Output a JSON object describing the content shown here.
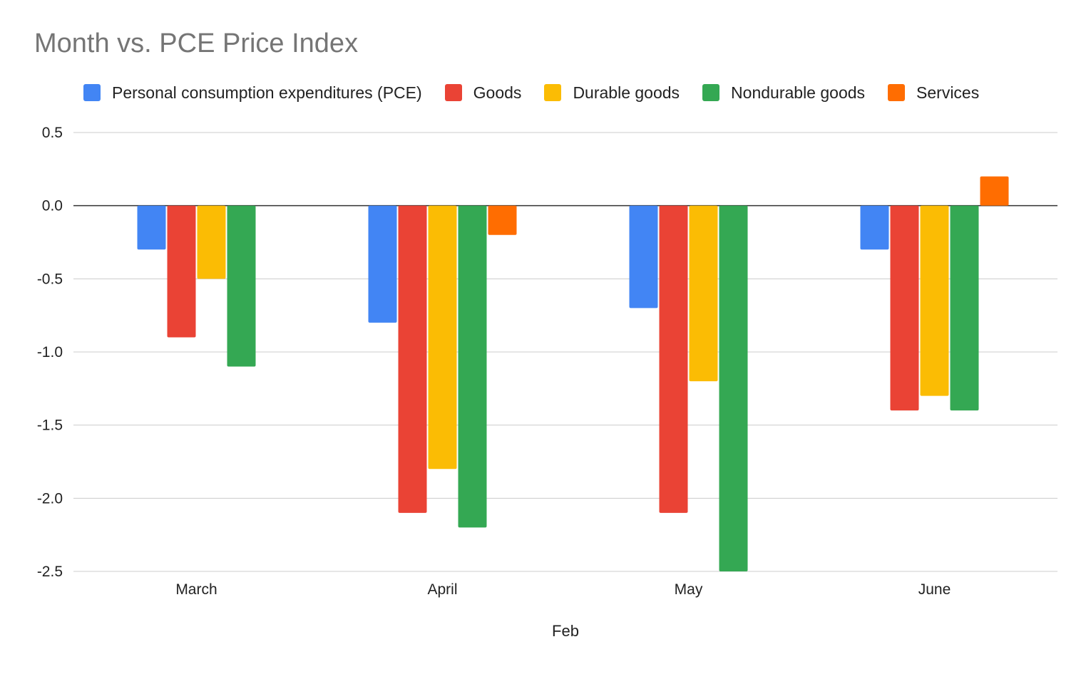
{
  "chart_data": {
    "type": "bar",
    "title": "Month vs. PCE Price Index",
    "xlabel": "Feb",
    "ylabel": "",
    "ylim": [
      -2.5,
      0.5
    ],
    "yticks": [
      "0.5",
      "0.0",
      "-0.5",
      "-1.0",
      "-1.5",
      "-2.0",
      "-2.5"
    ],
    "grid": true,
    "legend_position": "top",
    "categories": [
      "March",
      "April",
      "May",
      "June"
    ],
    "series": [
      {
        "name": "Personal consumption expenditures (PCE)",
        "color": "#4285F4",
        "values": [
          -0.3,
          -0.8,
          -0.7,
          -0.3
        ]
      },
      {
        "name": "Goods",
        "color": "#EA4335",
        "values": [
          -0.9,
          -2.1,
          -2.1,
          -1.4
        ]
      },
      {
        "name": "Durable goods",
        "color": "#FBBC04",
        "values": [
          -0.5,
          -1.8,
          -1.2,
          -1.3
        ]
      },
      {
        "name": "Nondurable goods",
        "color": "#34A853",
        "values": [
          -1.1,
          -2.2,
          -2.5,
          -1.4
        ]
      },
      {
        "name": "Services",
        "color": "#FF6D01",
        "values": [
          0.0,
          -0.2,
          0.0,
          0.2
        ]
      }
    ]
  }
}
